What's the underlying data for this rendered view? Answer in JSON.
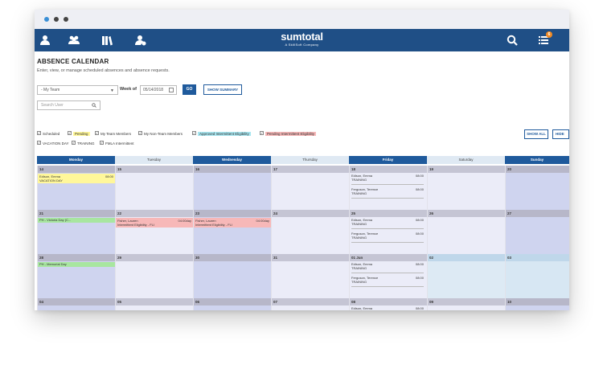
{
  "app": {
    "logo": "sumtotal",
    "tagline": "A SkillSoft Company",
    "notification_count": "6"
  },
  "page": {
    "title": "ABSENCE CALENDAR",
    "subtitle": "Enter, view, or manage scheduled absences and absence requests."
  },
  "filters": {
    "team_select": "- My Team",
    "week_label": "Week of",
    "week_value": "05/14/2018",
    "go_label": "GO",
    "summary_label": "SHOW SUMMARY",
    "search_placeholder": "Search User"
  },
  "legend": [
    {
      "label": "Scheduled",
      "color": ""
    },
    {
      "label": "Pending",
      "color": "#fff79a"
    },
    {
      "label": "My Team Members",
      "color": ""
    },
    {
      "label": "My Non-Team Members",
      "color": ""
    },
    {
      "label": "Approved Intermittent Eligibility",
      "color": "#a8e6f0"
    },
    {
      "label": "Pending Intermittent Eligibility",
      "color": "#f7b8b8"
    },
    {
      "label": "VACATION DAY",
      "color": ""
    },
    {
      "label": "TRAINING",
      "color": ""
    },
    {
      "label": "FMLA Intermittent",
      "color": ""
    }
  ],
  "buttons": {
    "show_all": "SHOW ALL",
    "hide_all": "HIDE AL"
  },
  "days": [
    "Monday",
    "Tuesday",
    "Wednesday",
    "Thursday",
    "Friday",
    "Saturday",
    "Sunday"
  ],
  "weeks": [
    {
      "dates": [
        "14",
        "15",
        "16",
        "17",
        "18",
        "19",
        "20"
      ]
    },
    {
      "dates": [
        "21",
        "22",
        "23",
        "24",
        "25",
        "26",
        "27"
      ]
    },
    {
      "dates": [
        "28",
        "29",
        "30",
        "31",
        "01 Jun",
        "02",
        "03"
      ]
    },
    {
      "dates": [
        "04",
        "05",
        "06",
        "07",
        "08",
        "09",
        "10"
      ]
    }
  ],
  "events": {
    "w1_mon": {
      "name": "Edison, Emma",
      "time": "08:00",
      "type": "VACATION DAY"
    },
    "w1_fri_a": {
      "name": "Edison, Emma",
      "time": "08:00",
      "type": "TRAINING"
    },
    "w1_fri_b": {
      "name": "Ferguson, Terence",
      "time": "08:00",
      "type": "TRAINING"
    },
    "w2_mon_bar": "PH - Victoria Day (C...",
    "w2_tue": {
      "name": "Fisher, Lauren",
      "time": "04:00day",
      "type": "Intermittent Eligibility - FLI"
    },
    "w2_wed": {
      "name": "Fisher, Lauren",
      "time": "04:00day",
      "type": "Intermittent Eligibility - FLI"
    },
    "w2_fri_a": {
      "name": "Edison, Emma",
      "time": "08:00",
      "type": "TRAINING"
    },
    "w2_fri_b": {
      "name": "Ferguson, Terence",
      "time": "08:00",
      "type": "TRAINING"
    },
    "w3_mon_bar": "PH - Memorial Day",
    "w3_fri_a": {
      "name": "Edison, Emma",
      "time": "08:00",
      "type": "TRAINING"
    },
    "w3_fri_b": {
      "name": "Ferguson, Terence",
      "time": "08:00",
      "type": "TRAINING"
    },
    "w4_fri_a": {
      "name": "Edison, Emma",
      "time": "08:00"
    }
  }
}
